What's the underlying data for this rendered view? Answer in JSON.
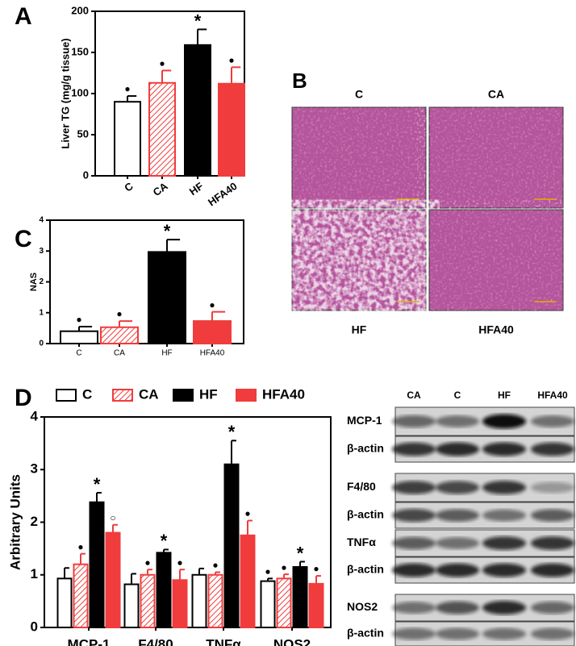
{
  "chart_data": [
    {
      "type": "bar",
      "label": "A",
      "ylabel": "Liver TG (mg/g tissue)",
      "categories": [
        "C",
        "CA",
        "HF",
        "HFA40"
      ],
      "values": [
        90,
        113,
        159,
        112
      ],
      "errors": [
        7,
        15,
        19,
        20
      ],
      "markers": [
        "●",
        "●",
        "*",
        "●"
      ],
      "colors": [
        "#ffffff",
        "#f03c3c",
        "#000000",
        "#f03c3c"
      ],
      "hatched": [
        false,
        true,
        false,
        false
      ],
      "ylim": [
        0,
        200
      ],
      "yticks": [
        0,
        50,
        100,
        150,
        200
      ]
    },
    {
      "type": "bar",
      "label": "C",
      "ylabel": "NAS",
      "categories": [
        "C",
        "CA",
        "HF",
        "HFA40"
      ],
      "values": [
        0.4,
        0.53,
        2.97,
        0.73
      ],
      "errors": [
        0.15,
        0.2,
        0.4,
        0.3
      ],
      "markers": [
        "●",
        "●",
        "*",
        "●"
      ],
      "colors": [
        "#ffffff",
        "#f03c3c",
        "#000000",
        "#f03c3c"
      ],
      "hatched": [
        false,
        true,
        false,
        false
      ],
      "ylim": [
        0,
        4
      ],
      "yticks": [
        0,
        1,
        2,
        3,
        4
      ]
    },
    {
      "type": "grouped-bar",
      "label": "D",
      "ylabel": "Arbitrary Units",
      "categories": [
        "MCP-1",
        "F4/80",
        "TNFα",
        "NOS2"
      ],
      "series": [
        {
          "name": "C",
          "color": "#ffffff",
          "hatched": false,
          "values": [
            0.93,
            0.82,
            1.0,
            0.88
          ],
          "errors": [
            0.2,
            0.2,
            0.12,
            0.05
          ],
          "markers": [
            null,
            null,
            null,
            "●"
          ]
        },
        {
          "name": "CA",
          "color": "#f03c3c",
          "hatched": true,
          "values": [
            1.2,
            1.0,
            1.0,
            0.93
          ],
          "errors": [
            0.2,
            0.1,
            0.05,
            0.08
          ],
          "markers": [
            "●",
            "●",
            "●",
            "●"
          ]
        },
        {
          "name": "HF",
          "color": "#000000",
          "hatched": false,
          "values": [
            2.38,
            1.42,
            3.1,
            1.15
          ],
          "errors": [
            0.18,
            0.06,
            0.45,
            0.1
          ],
          "markers": [
            "*",
            "*",
            "*",
            "*"
          ]
        },
        {
          "name": "HFA40",
          "color": "#f03c3c",
          "hatched": false,
          "values": [
            1.8,
            0.9,
            1.75,
            0.83
          ],
          "errors": [
            0.15,
            0.2,
            0.28,
            0.15
          ],
          "markers": [
            "○",
            "●",
            "●",
            "●"
          ]
        }
      ],
      "ylim": [
        0,
        4
      ],
      "yticks": [
        0,
        1,
        2,
        3,
        4
      ]
    }
  ],
  "histology": {
    "label": "B",
    "images": [
      "C",
      "CA",
      "HF",
      "HFA40"
    ]
  },
  "blot": {
    "columns": [
      "CA",
      "C",
      "HF",
      "HFA40"
    ],
    "rows": [
      "MCP-1",
      "β-actin",
      "F4/80",
      "β-actin",
      "TNFα",
      "β-actin",
      "NOS2",
      "β-actin"
    ]
  }
}
